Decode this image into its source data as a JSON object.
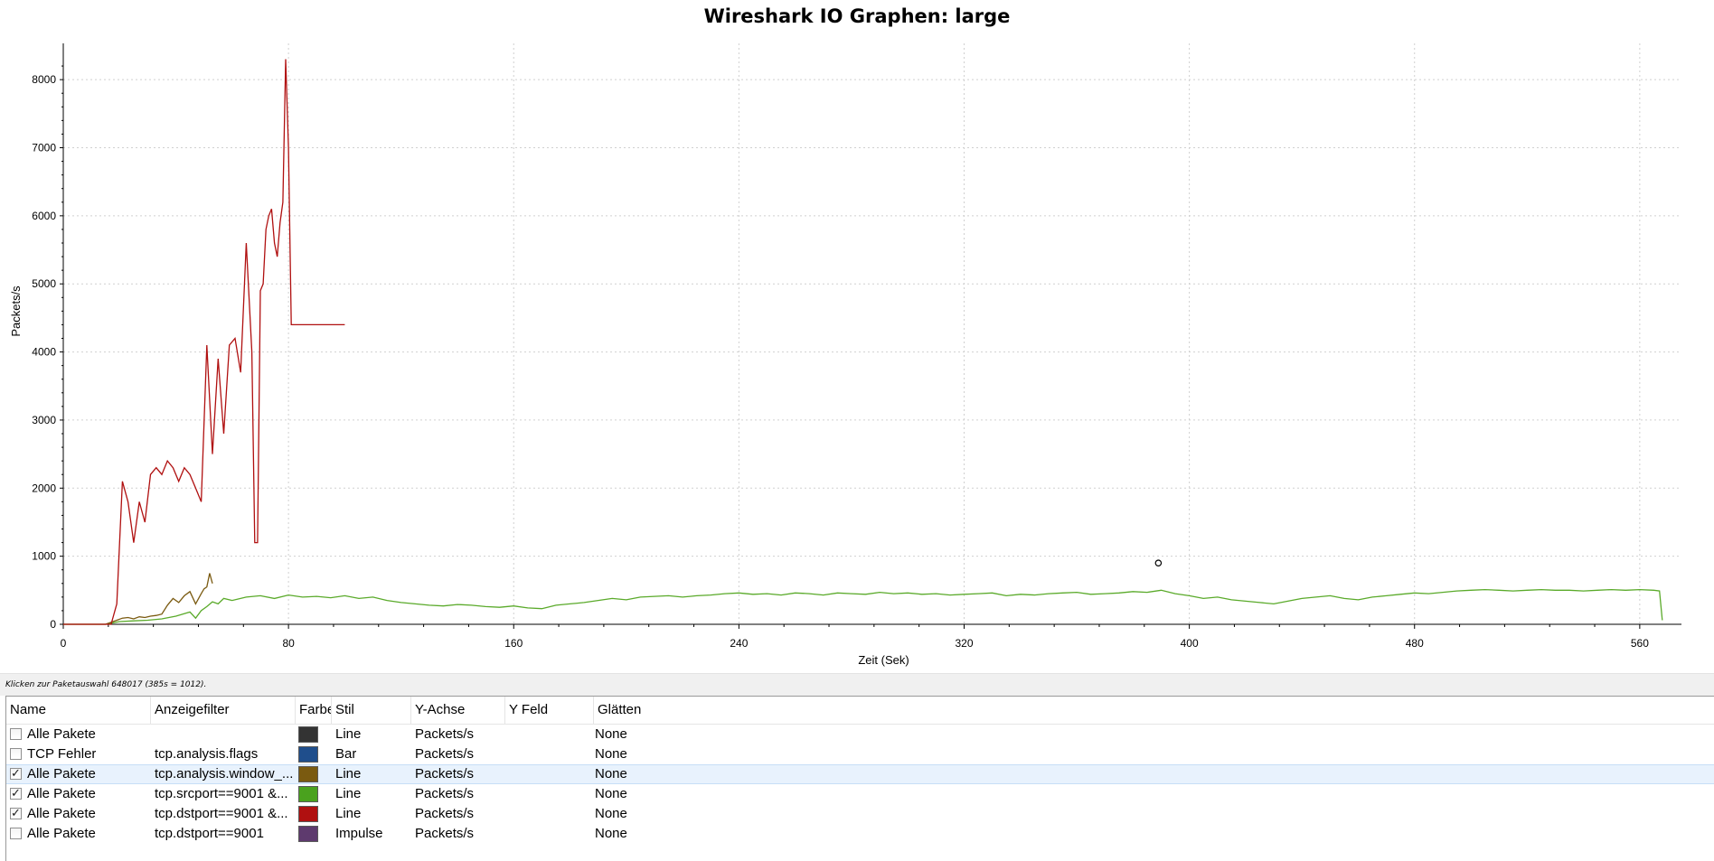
{
  "window": {
    "status_text": "Klicken zur Paketauswahl 648017 (385s = 1012)."
  },
  "chart_data": {
    "type": "line",
    "title": "Wireshark IO Graphen: large",
    "xlabel": "Zeit (Sek)",
    "ylabel": "Packets/s",
    "xlim": [
      0,
      570
    ],
    "ylim": [
      0,
      8400
    ],
    "xticks": [
      "0",
      "80",
      "160",
      "240",
      "320",
      "400",
      "480",
      "560"
    ],
    "yticks": [
      "0",
      "1000",
      "2000",
      "3000",
      "4000",
      "5000",
      "6000",
      "7000",
      "8000"
    ],
    "grid": true,
    "marker": {
      "x": 389,
      "y": 900
    },
    "series": [
      {
        "color": "#b01010",
        "x": [
          0,
          10,
          15,
          17,
          19,
          21,
          23,
          25,
          27,
          29,
          31,
          33,
          35,
          37,
          39,
          41,
          43,
          45,
          47,
          49,
          51,
          53,
          55,
          57,
          59,
          61,
          63,
          65,
          67,
          68,
          69,
          70,
          71,
          72,
          73,
          74,
          75,
          76,
          77,
          78,
          79,
          80,
          81,
          82,
          83,
          84,
          85,
          86,
          87,
          88,
          89,
          90,
          91,
          92,
          93,
          94,
          95,
          96,
          97,
          98,
          99,
          100
        ],
        "values": [
          0,
          0,
          0,
          0,
          300,
          2100,
          1800,
          1200,
          1800,
          1500,
          2200,
          2300,
          2200,
          2400,
          2300,
          2100,
          2300,
          2200,
          2000,
          1800,
          4100,
          2500,
          3900,
          2800,
          4100,
          4200,
          3700,
          5600,
          4000,
          1200,
          1200,
          4900,
          5000,
          5800,
          6000,
          6100,
          5600,
          5400,
          5900,
          6200,
          8300,
          7000,
          4400,
          4400,
          4400,
          4400,
          4400,
          4400,
          4400,
          4400,
          4400,
          4400,
          4400,
          4400,
          4400,
          4400,
          4400,
          4400,
          4400,
          4400,
          4400,
          4400
        ]
      },
      {
        "color": "#7a5a10",
        "x": [
          0,
          15,
          17,
          19,
          21,
          23,
          25,
          27,
          29,
          31,
          33,
          35,
          37,
          39,
          41,
          43,
          45,
          47,
          49,
          50,
          51,
          52,
          53
        ],
        "values": [
          0,
          0,
          30,
          60,
          90,
          100,
          80,
          110,
          100,
          120,
          130,
          150,
          280,
          380,
          320,
          420,
          480,
          300,
          450,
          520,
          550,
          750,
          600
        ]
      },
      {
        "color": "#5aaa2a",
        "x": [
          0,
          15,
          20,
          25,
          30,
          35,
          40,
          45,
          47,
          49,
          51,
          53,
          55,
          57,
          60,
          65,
          70,
          75,
          80,
          85,
          90,
          95,
          100,
          105,
          110,
          115,
          120,
          125,
          130,
          135,
          140,
          145,
          150,
          155,
          160,
          165,
          170,
          175,
          180,
          185,
          190,
          195,
          200,
          205,
          210,
          215,
          220,
          225,
          230,
          235,
          240,
          245,
          250,
          255,
          260,
          265,
          270,
          275,
          280,
          285,
          290,
          295,
          300,
          305,
          310,
          315,
          320,
          325,
          330,
          335,
          340,
          345,
          350,
          355,
          360,
          365,
          370,
          375,
          380,
          385,
          390,
          395,
          400,
          405,
          410,
          415,
          420,
          425,
          430,
          435,
          440,
          445,
          450,
          455,
          460,
          465,
          470,
          475,
          480,
          485,
          490,
          495,
          500,
          505,
          510,
          515,
          520,
          525,
          530,
          535,
          540,
          545,
          550,
          555,
          560,
          565,
          567,
          568
        ],
        "values": [
          0,
          0,
          40,
          50,
          60,
          80,
          120,
          180,
          90,
          200,
          260,
          330,
          300,
          380,
          350,
          400,
          420,
          380,
          430,
          400,
          410,
          390,
          420,
          380,
          400,
          350,
          320,
          300,
          280,
          270,
          290,
          280,
          260,
          250,
          270,
          240,
          230,
          280,
          300,
          320,
          350,
          380,
          360,
          400,
          410,
          420,
          400,
          420,
          430,
          450,
          460,
          440,
          450,
          430,
          460,
          450,
          430,
          460,
          450,
          440,
          470,
          450,
          460,
          440,
          450,
          430,
          440,
          450,
          460,
          420,
          440,
          430,
          450,
          460,
          470,
          440,
          450,
          460,
          480,
          470,
          500,
          450,
          420,
          380,
          400,
          360,
          340,
          320,
          300,
          340,
          380,
          400,
          420,
          380,
          360,
          400,
          420,
          440,
          460,
          450,
          470,
          490,
          500,
          510,
          500,
          490,
          500,
          510,
          500,
          500,
          490,
          500,
          510,
          500,
          510,
          500,
          490,
          60
        ]
      }
    ]
  },
  "table": {
    "headers": {
      "name": "Name",
      "filter": "Anzeigefilter",
      "color": "Farbe",
      "style": "Stil",
      "yaxis": "Y-Achse",
      "yfield": "Y Feld",
      "smoothing": "Glätten"
    },
    "rows": [
      {
        "checked": false,
        "name": "Alle Pakete",
        "filter": "",
        "color": "#333333",
        "style": "Line",
        "yaxis": "Packets/s",
        "yfield": "",
        "smoothing": "None",
        "selected": false
      },
      {
        "checked": false,
        "name": "TCP Fehler",
        "filter": "tcp.analysis.flags",
        "color": "#1f4e8c",
        "style": "Bar",
        "yaxis": "Packets/s",
        "yfield": "",
        "smoothing": "None",
        "selected": false
      },
      {
        "checked": true,
        "name": "Alle Pakete",
        "filter": "tcp.analysis.window_...",
        "color": "#7a5a10",
        "style": "Line",
        "yaxis": "Packets/s",
        "yfield": "",
        "smoothing": "None",
        "selected": true
      },
      {
        "checked": true,
        "name": "Alle Pakete",
        "filter": "tcp.srcport==9001 &...",
        "color": "#4aa21e",
        "style": "Line",
        "yaxis": "Packets/s",
        "yfield": "",
        "smoothing": "None",
        "selected": false
      },
      {
        "checked": true,
        "name": "Alle Pakete",
        "filter": "tcp.dstport==9001 &...",
        "color": "#b01010",
        "style": "Line",
        "yaxis": "Packets/s",
        "yfield": "",
        "smoothing": "None",
        "selected": false
      },
      {
        "checked": false,
        "name": "Alle Pakete",
        "filter": "tcp.dstport==9001",
        "color": "#5e3a6e",
        "style": "Impulse",
        "yaxis": "Packets/s",
        "yfield": "",
        "smoothing": "None",
        "selected": false
      }
    ]
  }
}
